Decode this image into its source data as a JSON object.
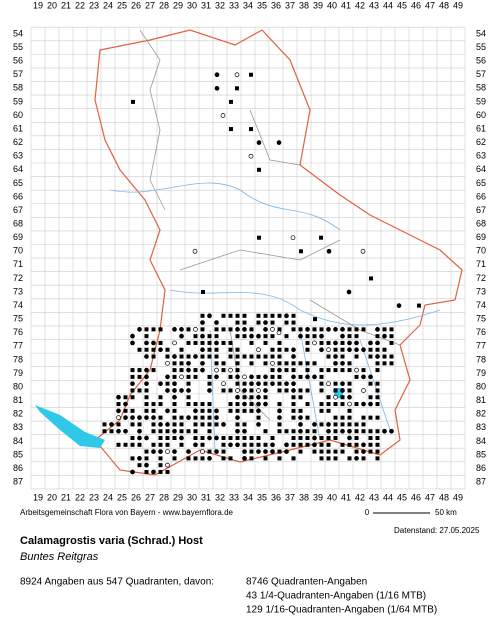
{
  "map": {
    "columns": [
      "19",
      "20",
      "21",
      "22",
      "23",
      "24",
      "25",
      "26",
      "27",
      "28",
      "29",
      "30",
      "31",
      "32",
      "33",
      "34",
      "35",
      "36",
      "37",
      "38",
      "39",
      "40",
      "41",
      "42",
      "43",
      "44",
      "45",
      "46",
      "47",
      "48",
      "49"
    ],
    "rows": [
      "54",
      "55",
      "56",
      "57",
      "58",
      "59",
      "60",
      "61",
      "62",
      "63",
      "64",
      "65",
      "66",
      "67",
      "68",
      "69",
      "70",
      "71",
      "72",
      "73",
      "74",
      "75",
      "76",
      "77",
      "78",
      "79",
      "80",
      "81",
      "82",
      "83",
      "84",
      "85",
      "86",
      "87"
    ],
    "credit": "Arbeitsgemeinschaft Flora von Bayern - www.bayernflora.de",
    "scale_start": "0",
    "scale_end": "50 km",
    "date": "Datenstand: 27.05.2025",
    "species": "Calamagrostis varia (Schrad.) Host",
    "common_name": "Buntes Reitgras",
    "summary": "8924 Angaben aus 547 Quadranten, davon:",
    "counts": [
      "8746 Quadranten-Angaben",
      "43 1/4-Quadranten-Angaben (1/16 MTB)",
      "129 1/16-Quadranten-Angaben (1/64 MTB)"
    ]
  }
}
